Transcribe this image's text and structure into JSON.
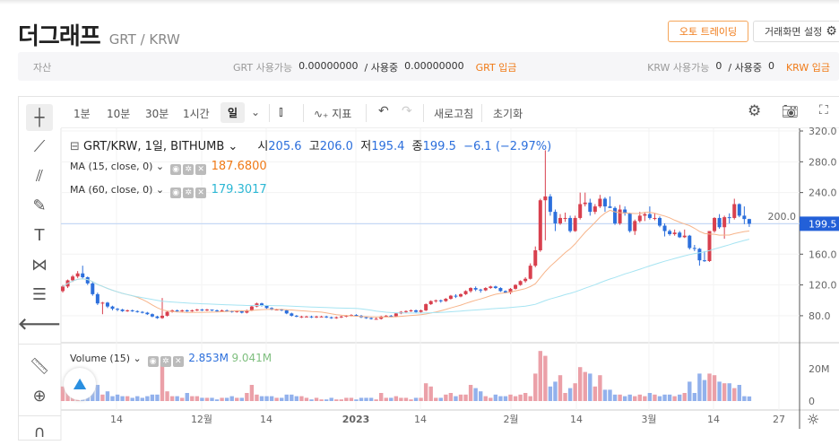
{
  "header": {
    "title": "더그래프",
    "pair": "GRT / KRW",
    "auto_trading": "오토 트레이딩",
    "screen_settings": "거래화면 설정"
  },
  "assets": {
    "label": "자산",
    "grt_available_label": "GRT 사용가능",
    "grt_available": "0.00000000",
    "in_use_label": "/ 사용중",
    "grt_in_use": "0.00000000",
    "grt_deposit": "GRT 입금",
    "krw_available_label": "KRW 사용가능",
    "krw_available": "0",
    "krw_in_use_label": "/ 사용중",
    "krw_in_use": "0",
    "krw_deposit": "KRW 입금"
  },
  "toolbar": {
    "intervals": [
      "1분",
      "10분",
      "30분",
      "1시간",
      "일"
    ],
    "selected": "일",
    "indicators": "지표",
    "refresh": "새로고침",
    "reset": "초기화"
  },
  "left_tools": [
    "crosshair-icon",
    "trend-line-icon",
    "fib-icon",
    "brush-icon",
    "text-icon",
    "pattern-icon",
    "measure-lines-icon",
    "back-arrow-icon",
    "ruler-icon",
    "zoom-in-icon",
    "magnet-icon"
  ],
  "legend": {
    "symbol": "GRT/KRW, 1일, BITHUMB",
    "o_label": "시",
    "o": "205.6",
    "h_label": "고",
    "h": "206.0",
    "l_label": "저",
    "l": "195.4",
    "c_label": "종",
    "c": "199.5",
    "change": "−6.1 (−2.97%)",
    "ma15_label": "MA (15, close, 0)",
    "ma15_value": "187.6800",
    "ma60_label": "MA (60, close, 0)",
    "ma60_value": "179.3017",
    "volume_label": "Volume (15)",
    "volume_value": "2.853M",
    "volume_ma": "9.041M"
  },
  "colors": {
    "up": "#d8404e",
    "down": "#2c6fdc",
    "vol_up": "#eba0a8",
    "vol_down": "#92b1ec",
    "ma15": "#f7b48a",
    "ma60": "#a6e4f2",
    "last_price": "#2360d8",
    "ma15_text": "#f07a17",
    "ma60_text": "#2bb7d4"
  },
  "chart_data": {
    "type": "candlestick",
    "price_axis": {
      "ticks": [
        "320.0",
        "280.0",
        "240.0",
        "200.0",
        "160.0",
        "120.0",
        "80.0"
      ],
      "last": "199.5",
      "range": [
        60,
        325
      ]
    },
    "volume_axis": {
      "ticks": [
        "20M",
        "0"
      ]
    },
    "time_axis": [
      "14",
      "12월",
      "14",
      "2023",
      "14",
      "2월",
      "14",
      "3월",
      "14",
      "27"
    ],
    "candles": [
      [
        "11-03",
        112,
        120,
        110,
        118,
        9
      ],
      [
        "11-04",
        118,
        127,
        116,
        126,
        10
      ],
      [
        "11-05",
        126,
        133,
        124,
        131,
        7
      ],
      [
        "11-06",
        131,
        138,
        129,
        135,
        8
      ],
      [
        "11-07",
        135,
        145,
        128,
        130,
        12
      ],
      [
        "11-08",
        130,
        131,
        120,
        122,
        10
      ],
      [
        "11-09",
        122,
        124,
        106,
        108,
        13
      ],
      [
        "11-10",
        108,
        110,
        94,
        96,
        10
      ],
      [
        "11-11",
        96,
        98,
        82,
        97,
        4
      ],
      [
        "11-12",
        97,
        98,
        90,
        92,
        6
      ],
      [
        "11-13",
        92,
        93,
        87,
        89,
        3
      ],
      [
        "11-14",
        89,
        90,
        86,
        88,
        4
      ],
      [
        "11-15",
        88,
        89,
        85,
        86,
        3
      ],
      [
        "11-16",
        86,
        88,
        85,
        87,
        3
      ],
      [
        "11-17",
        87,
        88,
        85,
        86,
        2
      ],
      [
        "11-18",
        86,
        87,
        84,
        85,
        3
      ],
      [
        "11-19",
        85,
        86,
        83,
        84,
        2
      ],
      [
        "11-20",
        84,
        85,
        81,
        82,
        3
      ],
      [
        "11-21",
        82,
        83,
        78,
        79,
        4
      ],
      [
        "11-22",
        79,
        80,
        76,
        77,
        4
      ],
      [
        "11-23",
        77,
        103,
        76,
        80,
        24
      ],
      [
        "11-24",
        80,
        86,
        79,
        85,
        6
      ],
      [
        "11-25",
        85,
        88,
        84,
        87,
        3
      ],
      [
        "11-26",
        87,
        88,
        85,
        86,
        3
      ],
      [
        "11-27",
        86,
        88,
        85,
        87,
        2
      ],
      [
        "11-28",
        87,
        88,
        85,
        86,
        5
      ],
      [
        "11-29",
        86,
        88,
        85,
        87,
        3
      ],
      [
        "11-30",
        87,
        89,
        86,
        88,
        3
      ],
      [
        "12-01",
        88,
        89,
        86,
        87,
        2
      ],
      [
        "12-02",
        87,
        89,
        86,
        88,
        2
      ],
      [
        "12-03",
        88,
        88,
        86,
        87,
        2
      ],
      [
        "12-04",
        87,
        88,
        85,
        86,
        1
      ],
      [
        "12-05",
        86,
        88,
        85,
        87,
        2
      ],
      [
        "12-06",
        87,
        88,
        85,
        86,
        2
      ],
      [
        "12-07",
        86,
        87,
        84,
        85,
        3
      ],
      [
        "12-08",
        85,
        87,
        84,
        86,
        2
      ],
      [
        "12-09",
        86,
        87,
        83,
        84,
        2
      ],
      [
        "12-10",
        84,
        88,
        83,
        87,
        5
      ],
      [
        "12-11",
        87,
        93,
        86,
        92,
        10
      ],
      [
        "12-12",
        92,
        97,
        91,
        96,
        4
      ],
      [
        "12-13",
        96,
        97,
        92,
        93,
        3
      ],
      [
        "12-14",
        93,
        94,
        89,
        90,
        3
      ],
      [
        "12-15",
        90,
        91,
        87,
        88,
        3
      ],
      [
        "12-16",
        88,
        89,
        87,
        88,
        2
      ],
      [
        "12-17",
        88,
        89,
        86,
        87,
        2
      ],
      [
        "12-18",
        87,
        88,
        82,
        83,
        4
      ],
      [
        "12-19",
        83,
        84,
        79,
        80,
        4
      ],
      [
        "12-20",
        80,
        81,
        78,
        79,
        3
      ],
      [
        "12-21",
        79,
        80,
        77,
        79,
        3
      ],
      [
        "12-22",
        79,
        80,
        78,
        79,
        2
      ],
      [
        "12-23",
        79,
        80,
        77,
        78,
        1
      ],
      [
        "12-24",
        78,
        80,
        77,
        79,
        2
      ],
      [
        "12-25",
        79,
        80,
        78,
        79,
        1
      ],
      [
        "12-26",
        79,
        80,
        77,
        78,
        1
      ],
      [
        "12-27",
        78,
        79,
        76,
        77,
        2
      ],
      [
        "12-28",
        77,
        79,
        76,
        78,
        1
      ],
      [
        "12-29",
        78,
        80,
        77,
        79,
        1
      ],
      [
        "12-30",
        79,
        81,
        78,
        80,
        2
      ],
      [
        "12-31",
        80,
        82,
        79,
        81,
        2
      ],
      [
        "01-01",
        81,
        82,
        79,
        80,
        1
      ],
      [
        "01-02",
        80,
        81,
        77,
        78,
        2
      ],
      [
        "01-03",
        78,
        79,
        76,
        77,
        2
      ],
      [
        "01-04",
        77,
        78,
        75,
        76,
        2
      ],
      [
        "01-05",
        76,
        78,
        75,
        76,
        1
      ],
      [
        "01-06",
        76,
        80,
        75,
        79,
        5
      ],
      [
        "01-07",
        79,
        81,
        78,
        80,
        2
      ],
      [
        "01-08",
        80,
        81,
        78,
        79,
        2
      ],
      [
        "01-09",
        79,
        84,
        78,
        83,
        3
      ],
      [
        "01-10",
        83,
        86,
        82,
        85,
        2
      ],
      [
        "01-11",
        85,
        87,
        84,
        86,
        2
      ],
      [
        "01-12",
        86,
        88,
        85,
        87,
        1
      ],
      [
        "01-13",
        87,
        88,
        84,
        85,
        2
      ],
      [
        "01-14",
        85,
        88,
        84,
        87,
        2
      ],
      [
        "01-15",
        87,
        96,
        86,
        95,
        11
      ],
      [
        "01-16",
        95,
        100,
        94,
        99,
        9
      ],
      [
        "01-17",
        99,
        101,
        97,
        100,
        2
      ],
      [
        "01-18",
        100,
        101,
        97,
        99,
        2
      ],
      [
        "01-19",
        99,
        103,
        98,
        102,
        4
      ],
      [
        "01-20",
        102,
        107,
        101,
        106,
        5
      ],
      [
        "01-21",
        106,
        108,
        103,
        105,
        3
      ],
      [
        "01-22",
        105,
        109,
        104,
        108,
        4
      ],
      [
        "01-23",
        108,
        113,
        107,
        112,
        4
      ],
      [
        "01-24",
        112,
        117,
        110,
        116,
        10
      ],
      [
        "01-25",
        116,
        118,
        112,
        114,
        8
      ],
      [
        "01-26",
        114,
        115,
        110,
        113,
        6
      ],
      [
        "01-27",
        113,
        117,
        112,
        116,
        3
      ],
      [
        "01-28",
        116,
        119,
        115,
        118,
        2
      ],
      [
        "01-29",
        118,
        119,
        115,
        116,
        4
      ],
      [
        "01-30",
        116,
        117,
        111,
        112,
        3
      ],
      [
        "01-31",
        112,
        113,
        109,
        110,
        3
      ],
      [
        "02-01",
        110,
        116,
        108,
        115,
        4
      ],
      [
        "02-02",
        115,
        121,
        114,
        120,
        3
      ],
      [
        "02-03",
        120,
        126,
        119,
        125,
        4
      ],
      [
        "02-04",
        125,
        130,
        123,
        128,
        5
      ],
      [
        "02-05",
        128,
        148,
        127,
        145,
        3
      ],
      [
        "02-06",
        145,
        170,
        143,
        165,
        17
      ],
      [
        "02-07",
        165,
        232,
        163,
        230,
        31
      ],
      [
        "02-08",
        230,
        295,
        178,
        235,
        28
      ],
      [
        "02-09",
        235,
        238,
        210,
        215,
        9
      ],
      [
        "02-10",
        215,
        218,
        190,
        200,
        12
      ],
      [
        "02-11",
        200,
        212,
        198,
        207,
        16
      ],
      [
        "02-12",
        207,
        214,
        202,
        207,
        5
      ],
      [
        "02-13",
        207,
        210,
        188,
        190,
        8
      ],
      [
        "02-14",
        190,
        210,
        189,
        207,
        11
      ],
      [
        "02-15",
        207,
        240,
        205,
        225,
        21
      ],
      [
        "02-16",
        225,
        240,
        222,
        227,
        18
      ],
      [
        "02-17",
        227,
        232,
        210,
        215,
        17
      ],
      [
        "02-18",
        215,
        225,
        212,
        222,
        9
      ],
      [
        "02-19",
        222,
        237,
        220,
        232,
        16
      ],
      [
        "02-20",
        232,
        234,
        215,
        222,
        7
      ],
      [
        "02-21",
        222,
        235,
        220,
        220,
        7
      ],
      [
        "02-22",
        220,
        222,
        198,
        200,
        4
      ],
      [
        "02-23",
        200,
        224,
        198,
        218,
        4
      ],
      [
        "02-24",
        218,
        222,
        210,
        213,
        3
      ],
      [
        "02-25",
        213,
        214,
        188,
        190,
        4
      ],
      [
        "02-26",
        190,
        205,
        185,
        203,
        3
      ],
      [
        "02-27",
        203,
        215,
        201,
        210,
        4
      ],
      [
        "02-28",
        210,
        214,
        203,
        212,
        3
      ],
      [
        "03-01",
        212,
        222,
        205,
        207,
        5
      ],
      [
        "03-02",
        207,
        213,
        204,
        207,
        4
      ],
      [
        "03-03",
        207,
        209,
        195,
        197,
        3
      ],
      [
        "03-04",
        197,
        200,
        183,
        190,
        4
      ],
      [
        "03-05",
        190,
        192,
        184,
        186,
        4
      ],
      [
        "03-06",
        186,
        192,
        184,
        188,
        3
      ],
      [
        "03-07",
        188,
        190,
        181,
        182,
        4
      ],
      [
        "03-08",
        182,
        192,
        181,
        184,
        5
      ],
      [
        "03-09",
        184,
        185,
        166,
        168,
        12
      ],
      [
        "03-10",
        168,
        172,
        164,
        167,
        5
      ],
      [
        "03-11",
        167,
        168,
        145,
        152,
        17
      ],
      [
        "03-12",
        152,
        164,
        150,
        151,
        13
      ],
      [
        "03-13",
        151,
        190,
        150,
        190,
        17
      ],
      [
        "03-14",
        190,
        208,
        188,
        207,
        16
      ],
      [
        "03-15",
        207,
        212,
        193,
        195,
        12
      ],
      [
        "03-16",
        195,
        210,
        180,
        208,
        11
      ],
      [
        "03-17",
        208,
        213,
        200,
        207,
        11
      ],
      [
        "03-18",
        207,
        232,
        205,
        225,
        8
      ],
      [
        "03-19",
        225,
        226,
        208,
        210,
        10
      ],
      [
        "03-20",
        210,
        222,
        199,
        205.6,
        3
      ],
      [
        "03-21",
        205.6,
        206,
        195.4,
        199.5,
        2.853
      ]
    ]
  }
}
